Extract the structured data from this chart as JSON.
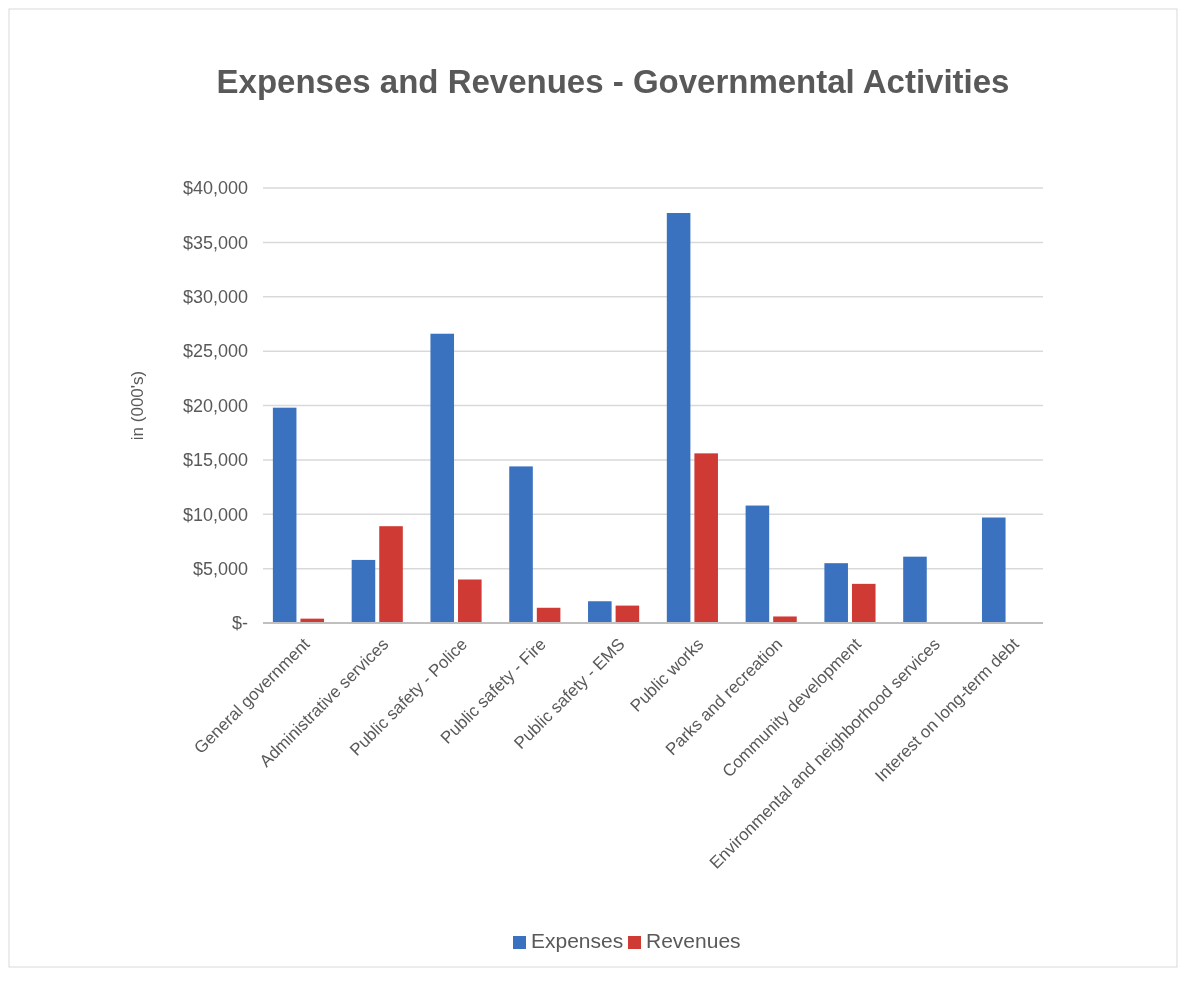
{
  "chart_data": {
    "type": "bar",
    "title": "Expenses and Revenues - Governmental Activities",
    "ylabel": "in (000's)",
    "categories": [
      "General government",
      "Administrative services",
      "Public safety - Police",
      "Public safety - Fire",
      "Public safety - EMS",
      "Public works",
      "Parks and recreation",
      "Community development",
      "Environmental and neighborhood services",
      "Interest on long-term debt"
    ],
    "series": [
      {
        "name": "Expenses",
        "color": "#3a72c0",
        "values": [
          19800,
          5800,
          26600,
          14400,
          2000,
          37700,
          10800,
          5500,
          6100,
          9700
        ]
      },
      {
        "name": "Revenues",
        "color": "#d03a35",
        "values": [
          400,
          8900,
          4000,
          1400,
          1600,
          15600,
          600,
          3600,
          null,
          null
        ]
      }
    ],
    "ylim": [
      0,
      40000
    ],
    "yticks": [
      {
        "value": 0,
        "label": "$-"
      },
      {
        "value": 5000,
        "label": "$5,000"
      },
      {
        "value": 10000,
        "label": "$10,000"
      },
      {
        "value": 15000,
        "label": "$15,000"
      },
      {
        "value": 20000,
        "label": "$20,000"
      },
      {
        "value": 25000,
        "label": "$25,000"
      },
      {
        "value": 30000,
        "label": "$30,000"
      },
      {
        "value": 35000,
        "label": "$35,000"
      },
      {
        "value": 40000,
        "label": "$40,000"
      }
    ],
    "grid": "y",
    "legend": "bottom"
  }
}
